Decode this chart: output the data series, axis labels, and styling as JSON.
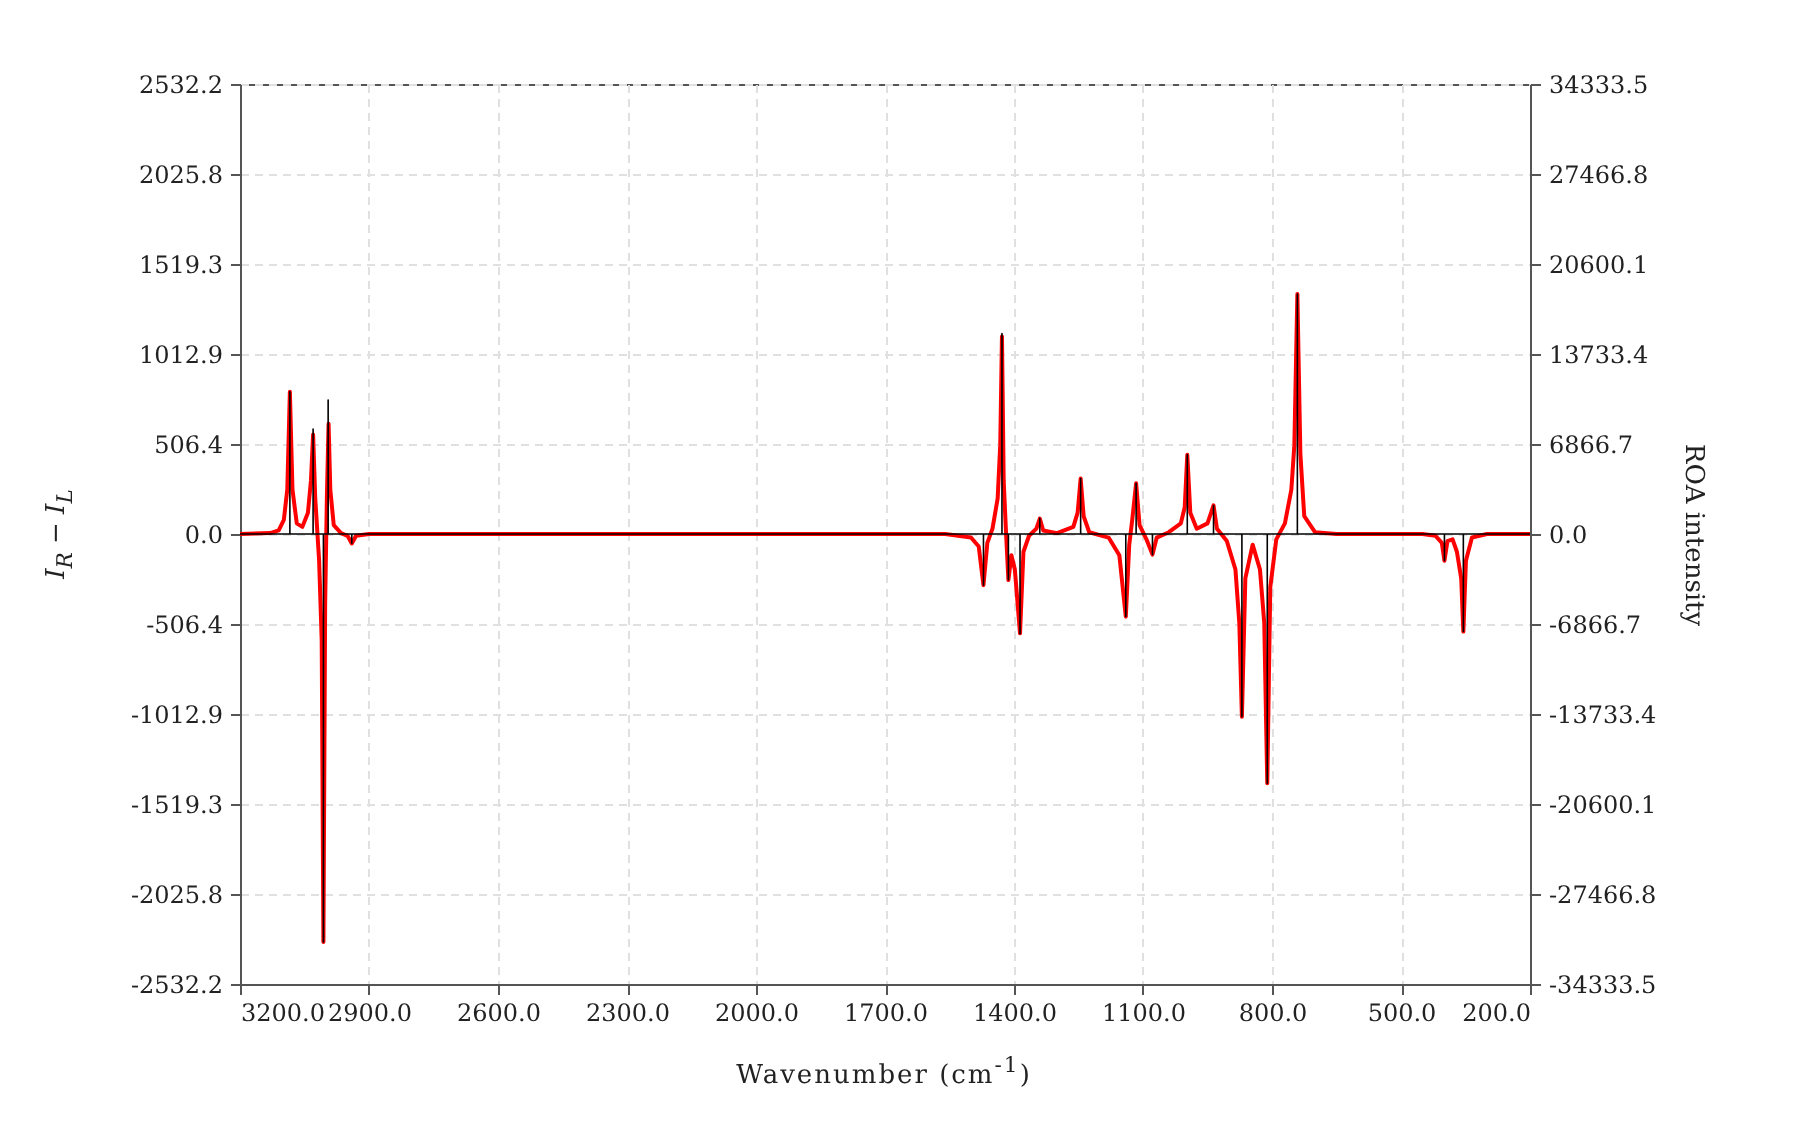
{
  "chart_data": {
    "type": "line",
    "xlabel": "Wavenumber (cm$^{-1}$)",
    "ylabel": "I$_{R}$ − I$_{L}$",
    "y2label": "ROA intensity",
    "xlim": [
      3200,
      200
    ],
    "xticks": [
      {
        "value": 3200,
        "label": "3200.0"
      },
      {
        "value": 2900,
        "label": "2900.0"
      },
      {
        "value": 2600,
        "label": "2600.0"
      },
      {
        "value": 2300,
        "label": "2300.0"
      },
      {
        "value": 2000,
        "label": "2000.0"
      },
      {
        "value": 1700,
        "label": "1700.0"
      },
      {
        "value": 1400,
        "label": "1400.0"
      },
      {
        "value": 1100,
        "label": "1100.0"
      },
      {
        "value": 800,
        "label": "800.0"
      },
      {
        "value": 500,
        "label": "500.0"
      },
      {
        "value": 200,
        "label": "200.0"
      }
    ],
    "ylim": [
      -2532.2,
      2532.2
    ],
    "yticks": [
      2532.2,
      2025.8,
      1519.3,
      1012.9,
      506.4,
      {
        "value": 0,
        "label": "0.0"
      },
      -506.4,
      -1012.9,
      -1519.3,
      -2025.8,
      -2532.2
    ],
    "y2lim": [
      -34333.5,
      34333.5
    ],
    "y2ticks": [
      34333.5,
      27466.8,
      20600.1,
      13733.4,
      6866.7,
      {
        "value": 0,
        "label": "0.0"
      },
      -6866.7,
      -13733.4,
      -20600.1,
      -27466.8,
      -34333.5
    ],
    "grid": true,
    "line_style": "solid",
    "series": [
      {
        "color": "#ff0000",
        "x": [
          3200,
          3130,
          3110,
          3098,
          3090,
          3084,
          3078,
          3068,
          3055,
          3042,
          3035,
          3030,
          3025,
          3016,
          3010,
          3006,
          3002,
          2998,
          2994,
          2990,
          2982,
          2965,
          2950,
          2940,
          2930,
          2900,
          1560,
          1500,
          1482,
          1471,
          1462,
          1450,
          1438,
          1432,
          1428,
          1424,
          1418,
          1413,
          1406,
          1398,
          1386,
          1378,
          1365,
          1348,
          1340,
          1332,
          1300,
          1262,
          1252,
          1245,
          1238,
          1225,
          1180,
          1155,
          1140,
          1132,
          1125,
          1116,
          1108,
          1092,
          1078,
          1068,
          1040,
          1012,
          1003,
          997,
          990,
          975,
          950,
          936,
          928,
          905,
          885,
          876,
          870,
          862,
          845,
          828,
          818,
          811,
          804,
          790,
          770,
          755,
          748,
          741,
          734,
          725,
          700,
          650,
          450,
          420,
          405,
          399,
          392,
          380,
          370,
          360,
          355,
          349,
          335,
          300,
          200
        ],
        "values": [
          0,
          5,
          20,
          80,
          250,
          800,
          250,
          60,
          40,
          120,
          300,
          560,
          200,
          -150,
          -600,
          -2296,
          -400,
          200,
          620,
          250,
          50,
          5,
          -10,
          -53,
          -10,
          0,
          0,
          -20,
          -70,
          -288,
          -50,
          30,
          200,
          500,
          1111,
          300,
          -20,
          -259,
          -120,
          -200,
          -559,
          -100,
          -10,
          30,
          87,
          20,
          5,
          40,
          120,
          312,
          100,
          10,
          -20,
          -120,
          -465,
          -60,
          80,
          285,
          50,
          -30,
          -116,
          -20,
          10,
          60,
          150,
          446,
          120,
          30,
          60,
          161,
          30,
          -40,
          -200,
          -500,
          -1028,
          -250,
          -60,
          -200,
          -500,
          -1403,
          -300,
          -30,
          60,
          250,
          500,
          1350,
          450,
          100,
          10,
          0,
          0,
          -10,
          -50,
          -150,
          -40,
          -30,
          -100,
          -250,
          -549,
          -150,
          -20,
          0,
          0
        ]
      },
      {
        "color": "#000000",
        "axis": "y2",
        "x": [
          3200,
          3084,
          3084,
          3084,
          3030,
          3030,
          3030,
          3006,
          3006,
          3006,
          2995,
          2995,
          2995,
          2940,
          2940,
          2940,
          1471,
          1471,
          1471,
          1428,
          1428,
          1428,
          1413,
          1413,
          1413,
          1386,
          1386,
          1386,
          1340,
          1340,
          1340,
          1245,
          1245,
          1245,
          1140,
          1140,
          1140,
          1116,
          1116,
          1116,
          1078,
          1078,
          1078,
          997,
          997,
          997,
          936,
          936,
          936,
          870,
          870,
          870,
          811,
          811,
          811,
          741,
          741,
          741,
          399,
          399,
          399,
          355,
          355,
          355,
          200
        ],
        "values": [
          0,
          0,
          10850,
          0,
          0,
          8000,
          0,
          0,
          -31130,
          0,
          0,
          10220,
          0,
          0,
          -700,
          0,
          0,
          -3900,
          0,
          0,
          15300,
          0,
          0,
          -3500,
          0,
          0,
          -7600,
          0,
          0,
          1200,
          0,
          0,
          4230,
          0,
          0,
          -6300,
          0,
          0,
          3860,
          0,
          0,
          -1570,
          0,
          0,
          6050,
          0,
          0,
          2180,
          0,
          0,
          -13940,
          0,
          0,
          -19020,
          0,
          0,
          18300,
          0,
          0,
          -2030,
          0,
          0,
          -7440,
          0,
          0
        ]
      }
    ]
  }
}
